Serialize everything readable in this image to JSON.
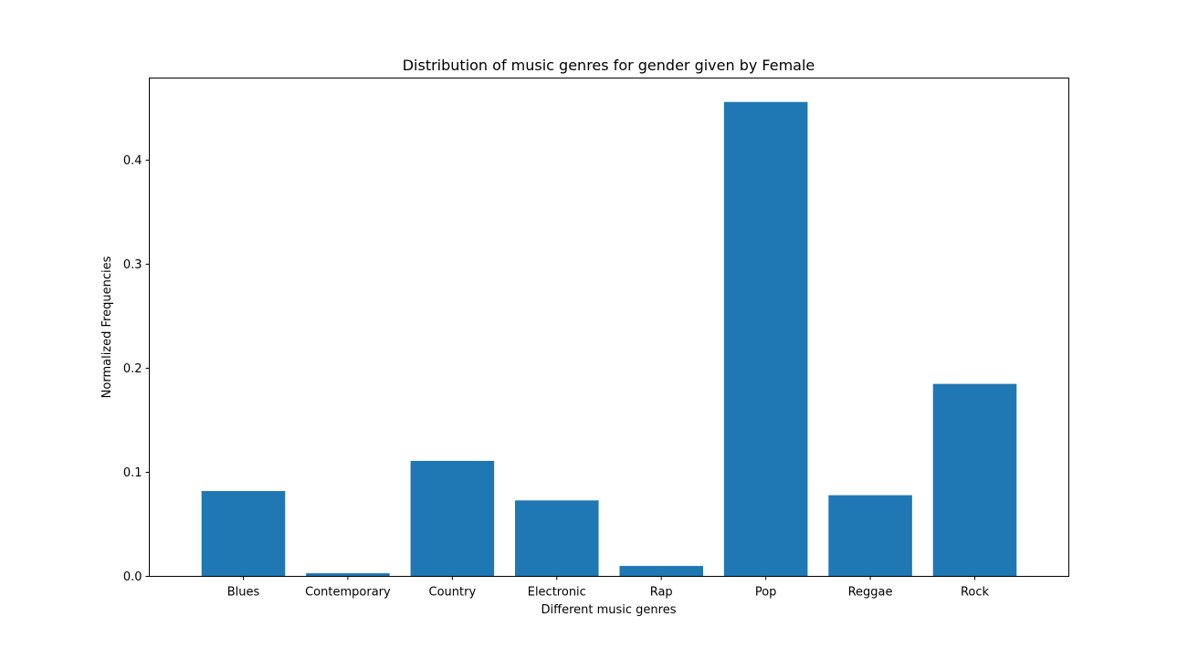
{
  "chart_data": {
    "type": "bar",
    "title": "Distribution of music genres for gender given by Female",
    "xlabel": "Different music genres",
    "ylabel": "Normalized Frequencies",
    "categories": [
      "Blues",
      "Contemporary",
      "Country",
      "Electronic",
      "Rap",
      "Pop",
      "Reggae",
      "Rock"
    ],
    "values": [
      0.082,
      0.003,
      0.111,
      0.073,
      0.01,
      0.456,
      0.078,
      0.185
    ],
    "ylim": [
      0,
      0.479
    ],
    "yticks": [
      0.0,
      0.1,
      0.2,
      0.3,
      0.4
    ],
    "ytick_labels": [
      "0.0",
      "0.1",
      "0.2",
      "0.3",
      "0.4"
    ],
    "bar_color": "#1f77b4",
    "grid": false,
    "legend": "none"
  }
}
